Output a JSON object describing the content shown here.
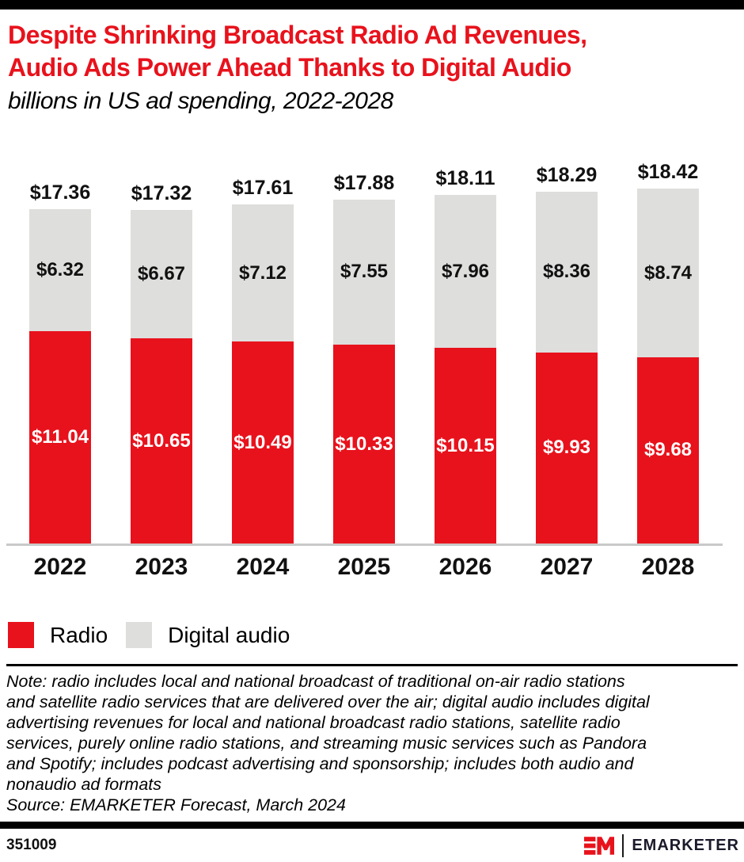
{
  "header": {
    "title_lines": [
      "Despite Shrinking Broadcast Radio Ad Revenues,",
      "Audio Ads Power Ahead Thanks to Digital Audio"
    ],
    "subtitle": "billions in US ad spending, 2022-2028"
  },
  "chart_data": {
    "type": "bar",
    "stacked": true,
    "title": "Despite Shrinking Broadcast Radio Ad Revenues, Audio Ads Power Ahead Thanks to Digital Audio",
    "subtitle": "billions in US ad spending, 2022-2028",
    "unit": "billions of US dollars",
    "value_prefix": "$",
    "categories": [
      "2022",
      "2023",
      "2024",
      "2025",
      "2026",
      "2027",
      "2028"
    ],
    "series": [
      {
        "name": "Radio",
        "color": "#E8121C",
        "label_color": "#FFFFFF",
        "values": [
          11.04,
          10.65,
          10.49,
          10.33,
          10.15,
          9.93,
          9.68
        ]
      },
      {
        "name": "Digital audio",
        "color": "#DEDEDC",
        "label_color": "#111111",
        "values": [
          6.32,
          6.67,
          7.12,
          7.55,
          7.96,
          8.36,
          8.74
        ]
      }
    ],
    "totals": [
      17.36,
      17.32,
      17.61,
      17.88,
      18.11,
      18.29,
      18.42
    ],
    "legend_position": "bottom-left",
    "grid": false,
    "ylim": [
      0,
      18.42
    ]
  },
  "footnote": {
    "note_lines": [
      "Note: radio includes local and national broadcast of traditional on-air radio stations",
      "and satellite radio services that are delivered over the air; digital audio includes digital",
      "advertising revenues for local and national broadcast radio stations, satellite radio",
      "services, purely online radio stations, and streaming music services such as Pandora",
      "and Spotify; includes podcast advertising and sponsorship; includes both audio and",
      "nonaudio ad formats"
    ],
    "source": "Source: EMARKETER Forecast, March 2024"
  },
  "footer": {
    "chart_id": "351009",
    "brand": "EMARKETER"
  },
  "colors": {
    "accent_red": "#E8121C",
    "digital_gray": "#DEDEDC",
    "axis_gray": "#C9C9C9",
    "border_black": "#000000"
  }
}
